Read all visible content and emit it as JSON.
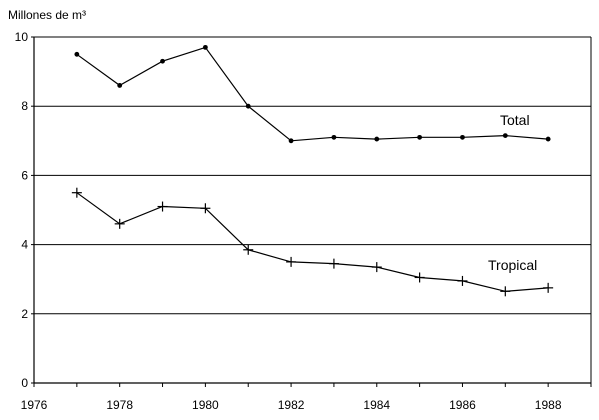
{
  "chart_data": {
    "type": "line",
    "title": "",
    "ylabel": "Millones de m³",
    "xlabel": "",
    "xlim": [
      1976,
      1989
    ],
    "ylim": [
      0,
      10
    ],
    "x_ticks": [
      "1976",
      "1978",
      "1980",
      "1982",
      "1984",
      "1986",
      "1988"
    ],
    "y_ticks": [
      "0",
      "2",
      "4",
      "6",
      "8",
      "10"
    ],
    "grid": "horizontal",
    "series": [
      {
        "name": "Total",
        "marker": "dot",
        "x": [
          1977,
          1978,
          1979,
          1980,
          1981,
          1982,
          1983,
          1984,
          1985,
          1986,
          1987,
          1988
        ],
        "values": [
          9.5,
          8.6,
          9.3,
          9.7,
          8.0,
          7.0,
          7.1,
          7.05,
          7.1,
          7.1,
          7.15,
          7.05
        ]
      },
      {
        "name": "Tropical",
        "marker": "cross",
        "x": [
          1977,
          1978,
          1979,
          1980,
          1981,
          1982,
          1983,
          1984,
          1985,
          1986,
          1987,
          1988
        ],
        "values": [
          5.5,
          4.6,
          5.1,
          5.05,
          3.85,
          3.5,
          3.45,
          3.35,
          3.05,
          2.95,
          2.65,
          2.75
        ]
      }
    ]
  }
}
